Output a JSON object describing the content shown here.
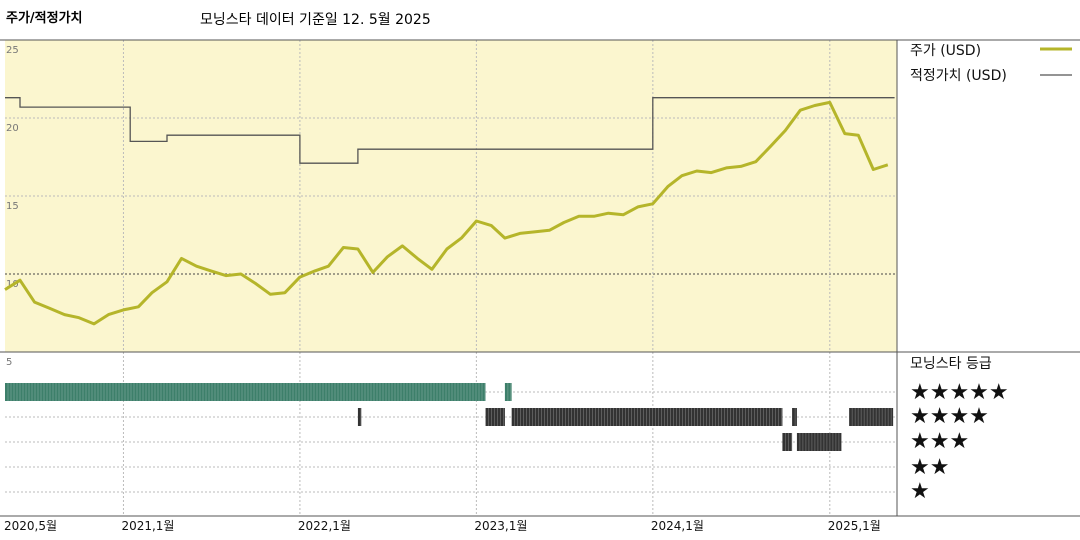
{
  "header": {
    "title": "주가/적정가치",
    "subtitle": "모닝스타 데이터 기준일 12. 5월 2025"
  },
  "colors": {
    "price_line": "#b5b52a",
    "fair_value_line": "#555555",
    "plot_bg": "#fbf6cf",
    "rating_5": "#3d7f6a",
    "rating_4": "#333333",
    "rating_3": "#333333"
  },
  "legend": {
    "price": "주가 (USD)",
    "fair_value": "적정가치 (USD)"
  },
  "rating_panel": {
    "title": "모닝스타 등급",
    "stars": [
      "★★★★★",
      "★★★★",
      "★★★",
      "★★",
      "★"
    ]
  },
  "chart_data": {
    "type": "line",
    "x_range": [
      "2020-05",
      "2025-05"
    ],
    "x_ticks": [
      "2020,5월",
      "2021,1월",
      "2022,1월",
      "2023,1월",
      "2024,1월",
      "2025,1월"
    ],
    "y_range": [
      5,
      25
    ],
    "y_ticks": [
      25,
      20,
      15,
      10,
      5
    ],
    "grid": true,
    "legend_position": "right",
    "series": [
      {
        "name": "주가 (USD)",
        "x": [
          "2020-05-01",
          "2020-06-01",
          "2020-07-01",
          "2020-08-01",
          "2020-09-01",
          "2020-10-01",
          "2020-11-01",
          "2020-12-01",
          "2021-01-01",
          "2021-02-01",
          "2021-03-01",
          "2021-04-01",
          "2021-05-01",
          "2021-06-01",
          "2021-07-01",
          "2021-08-01",
          "2021-09-01",
          "2021-10-01",
          "2021-11-01",
          "2021-12-01",
          "2022-01-01",
          "2022-02-01",
          "2022-03-01",
          "2022-04-01",
          "2022-05-01",
          "2022-06-01",
          "2022-07-01",
          "2022-08-01",
          "2022-09-01",
          "2022-10-01",
          "2022-11-01",
          "2022-12-01",
          "2023-01-01",
          "2023-02-01",
          "2023-03-01",
          "2023-04-01",
          "2023-05-01",
          "2023-06-01",
          "2023-07-01",
          "2023-08-01",
          "2023-09-01",
          "2023-10-01",
          "2023-11-01",
          "2023-12-01",
          "2024-01-01",
          "2024-02-01",
          "2024-03-01",
          "2024-04-01",
          "2024-05-01",
          "2024-06-01",
          "2024-07-01",
          "2024-08-01",
          "2024-09-01",
          "2024-10-01",
          "2024-11-01",
          "2024-12-01",
          "2025-01-01",
          "2025-02-01",
          "2025-03-01",
          "2025-04-01",
          "2025-05-01"
        ],
        "values": [
          9.0,
          9.6,
          8.2,
          7.8,
          7.4,
          7.2,
          6.8,
          7.4,
          7.7,
          7.9,
          8.8,
          9.5,
          11.0,
          10.5,
          10.2,
          9.9,
          10.0,
          9.4,
          8.7,
          8.8,
          9.8,
          10.2,
          10.5,
          11.7,
          11.6,
          10.1,
          11.1,
          11.8,
          11.0,
          10.3,
          11.6,
          12.3,
          13.4,
          13.1,
          12.3,
          12.6,
          12.7,
          12.8,
          13.3,
          13.7,
          13.7,
          13.9,
          13.8,
          14.3,
          14.5,
          15.6,
          16.3,
          16.6,
          16.5,
          16.8,
          16.9,
          17.2,
          18.2,
          19.2,
          20.5,
          20.8,
          21.0,
          19.0,
          18.9,
          16.7,
          17.0
        ]
      },
      {
        "name": "적정가치 (USD)",
        "x": [
          "2020-05-01",
          "2020-06-01",
          "2021-01-15",
          "2021-04-01",
          "2022-01-01",
          "2022-05-01",
          "2024-01-01",
          "2025-05-15"
        ],
        "values": [
          21.3,
          20.7,
          18.5,
          18.9,
          17.1,
          18.0,
          21.3,
          21.3
        ],
        "step": true
      }
    ],
    "rating_history": [
      {
        "stars": 5,
        "from": "2020-05-01",
        "to": "2023-01-20"
      },
      {
        "stars": 5,
        "from": "2023-03-01",
        "to": "2023-03-15"
      },
      {
        "stars": 4,
        "from": "2022-05-01",
        "to": "2022-05-08"
      },
      {
        "stars": 4,
        "from": "2023-01-20",
        "to": "2023-03-01"
      },
      {
        "stars": 4,
        "from": "2023-03-15",
        "to": "2024-09-25"
      },
      {
        "stars": 4,
        "from": "2024-10-15",
        "to": "2024-10-25"
      },
      {
        "stars": 4,
        "from": "2025-02-10",
        "to": "2025-05-12"
      },
      {
        "stars": 3,
        "from": "2024-09-25",
        "to": "2024-10-15"
      },
      {
        "stars": 3,
        "from": "2024-10-25",
        "to": "2025-01-25"
      }
    ]
  }
}
